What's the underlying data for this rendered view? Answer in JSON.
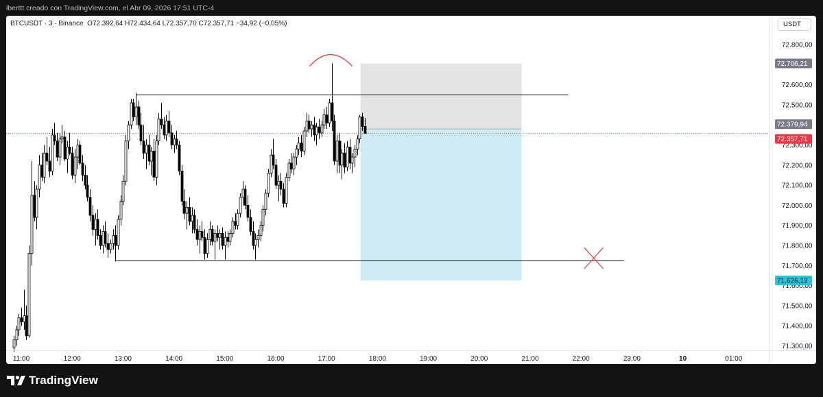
{
  "caption": "lberttt creado con TradingView.com, el Abr 09, 2026 17:51 UTC-4",
  "symbol": {
    "name": "BTCUSDT · 3 · Binance",
    "open": "O72.392,64",
    "high": "H72.434,64",
    "low": "L72.357,70",
    "close": "C72.357,71",
    "change": "−34,92 (−0,05%)"
  },
  "currency": "USDT",
  "brand": "TradingView",
  "colors": {
    "background": "#ffffff",
    "frame": "#131313",
    "candle_up": "#ffffff",
    "candle_down": "#000000",
    "profit_zone": "#cdebf2",
    "stop_zone": "#e4e4e4",
    "last_price_label": "#f23645",
    "target_label": "#26c6da",
    "stop_label": "#787b86",
    "annotation": "#e83a3a"
  },
  "chart_data": {
    "type": "candlestick",
    "symbol": "BTCUSDT",
    "interval": "3",
    "exchange": "Binance",
    "ylim": [
      71260,
      72890
    ],
    "xlim": [
      "11:00",
      "01:00"
    ],
    "y_ticks": [
      {
        "value": 72800,
        "label": "72.800,00"
      },
      {
        "value": 72600,
        "label": "72.600,00"
      },
      {
        "value": 72500,
        "label": "72.500,00"
      },
      {
        "value": 72300,
        "label": "72.300,00"
      },
      {
        "value": 72200,
        "label": "72.200,00"
      },
      {
        "value": 72100,
        "label": "72.100,00"
      },
      {
        "value": 72000,
        "label": "72.000,00"
      },
      {
        "value": 71900,
        "label": "71.900,00"
      },
      {
        "value": 71800,
        "label": "71.800,00"
      },
      {
        "value": 71700,
        "label": "71.700,00"
      },
      {
        "value": 71600,
        "label": "71.600,00"
      },
      {
        "value": 71500,
        "label": "71.500,00"
      },
      {
        "value": 71400,
        "label": "71.400,00"
      },
      {
        "value": 71300,
        "label": "71.300,00"
      }
    ],
    "x_ticks": [
      "11:00",
      "12:00",
      "13:00",
      "14:00",
      "15:00",
      "16:00",
      "17:00",
      "18:00",
      "19:00",
      "20:00",
      "21:00",
      "22:00",
      "23:00",
      "10",
      "01:00"
    ],
    "price_labels": [
      {
        "value": 72706.21,
        "label": "72.706,21",
        "role": "stop"
      },
      {
        "value": 72379.94,
        "label": "72.379,94",
        "role": "entry"
      },
      {
        "value": 72357.71,
        "label": "72.357,71",
        "role": "last"
      },
      {
        "value": 71626.13,
        "label": "71.626,13",
        "role": "target"
      }
    ],
    "position_tool": {
      "type": "short",
      "entry": 72379.94,
      "stop": 72706.21,
      "target": 71626.13,
      "start_time": "17:40",
      "end_time": "20:50"
    },
    "horizontal_lines": [
      {
        "price": 72550,
        "from": "13:15",
        "to": "21:45"
      },
      {
        "price": 71725,
        "from": "12:51",
        "to": "22:51"
      }
    ],
    "candles": [
      {
        "t": "10:51",
        "o": 71290,
        "h": 71350,
        "l": 71270,
        "c": 71330
      },
      {
        "t": "10:54",
        "o": 71330,
        "h": 71400,
        "l": 71300,
        "c": 71380
      },
      {
        "t": "10:57",
        "o": 71380,
        "h": 71460,
        "l": 71350,
        "c": 71440
      },
      {
        "t": "11:00",
        "o": 71440,
        "h": 71490,
        "l": 71400,
        "c": 71420
      },
      {
        "t": "11:03",
        "o": 71420,
        "h": 71580,
        "l": 71380,
        "c": 71450
      },
      {
        "t": "11:06",
        "o": 71450,
        "h": 71500,
        "l": 71330,
        "c": 71350
      },
      {
        "t": "11:09",
        "o": 71350,
        "h": 71800,
        "l": 71340,
        "c": 71760
      },
      {
        "t": "11:12",
        "o": 71760,
        "h": 72220,
        "l": 71700,
        "c": 72050
      },
      {
        "t": "11:15",
        "o": 72050,
        "h": 72120,
        "l": 71920,
        "c": 71940
      },
      {
        "t": "11:18",
        "o": 71940,
        "h": 72100,
        "l": 71880,
        "c": 72080
      },
      {
        "t": "11:21",
        "o": 72080,
        "h": 72250,
        "l": 72040,
        "c": 72200
      },
      {
        "t": "11:24",
        "o": 72200,
        "h": 72260,
        "l": 72120,
        "c": 72140
      },
      {
        "t": "11:27",
        "o": 72140,
        "h": 72300,
        "l": 72110,
        "c": 72260
      },
      {
        "t": "11:30",
        "o": 72260,
        "h": 72340,
        "l": 72200,
        "c": 72220
      },
      {
        "t": "11:33",
        "o": 72220,
        "h": 72290,
        "l": 72140,
        "c": 72170
      },
      {
        "t": "11:36",
        "o": 72170,
        "h": 72380,
        "l": 72150,
        "c": 72350
      },
      {
        "t": "11:39",
        "o": 72350,
        "h": 72410,
        "l": 72300,
        "c": 72320
      },
      {
        "t": "11:42",
        "o": 72320,
        "h": 72360,
        "l": 72220,
        "c": 72240
      },
      {
        "t": "11:45",
        "o": 72240,
        "h": 72360,
        "l": 72200,
        "c": 72330
      },
      {
        "t": "11:48",
        "o": 72330,
        "h": 72400,
        "l": 72310,
        "c": 72340
      },
      {
        "t": "11:51",
        "o": 72340,
        "h": 72370,
        "l": 72220,
        "c": 72230
      },
      {
        "t": "11:54",
        "o": 72230,
        "h": 72320,
        "l": 72160,
        "c": 72290
      },
      {
        "t": "11:57",
        "o": 72290,
        "h": 72360,
        "l": 72250,
        "c": 72260
      },
      {
        "t": "12:00",
        "o": 72260,
        "h": 72290,
        "l": 72130,
        "c": 72150
      },
      {
        "t": "12:03",
        "o": 72150,
        "h": 72280,
        "l": 72110,
        "c": 72240
      },
      {
        "t": "12:06",
        "o": 72240,
        "h": 72330,
        "l": 72180,
        "c": 72300
      },
      {
        "t": "12:09",
        "o": 72300,
        "h": 72320,
        "l": 72200,
        "c": 72210
      },
      {
        "t": "12:12",
        "o": 72210,
        "h": 72250,
        "l": 72120,
        "c": 72150
      },
      {
        "t": "12:15",
        "o": 72150,
        "h": 72200,
        "l": 72080,
        "c": 72100
      },
      {
        "t": "12:18",
        "o": 72100,
        "h": 72150,
        "l": 72020,
        "c": 72040
      },
      {
        "t": "12:21",
        "o": 72040,
        "h": 72080,
        "l": 71920,
        "c": 71950
      },
      {
        "t": "12:24",
        "o": 71950,
        "h": 72000,
        "l": 71850,
        "c": 71880
      },
      {
        "t": "12:27",
        "o": 71880,
        "h": 71960,
        "l": 71800,
        "c": 71930
      },
      {
        "t": "12:30",
        "o": 71930,
        "h": 71980,
        "l": 71830,
        "c": 71850
      },
      {
        "t": "12:33",
        "o": 71850,
        "h": 71880,
        "l": 71780,
        "c": 71800
      },
      {
        "t": "12:36",
        "o": 71800,
        "h": 71900,
        "l": 71760,
        "c": 71870
      },
      {
        "t": "12:39",
        "o": 71870,
        "h": 71920,
        "l": 71790,
        "c": 71810
      },
      {
        "t": "12:42",
        "o": 71810,
        "h": 71860,
        "l": 71740,
        "c": 71780
      },
      {
        "t": "12:45",
        "o": 71780,
        "h": 71830,
        "l": 71760,
        "c": 71810
      },
      {
        "t": "12:48",
        "o": 71810,
        "h": 71880,
        "l": 71780,
        "c": 71850
      },
      {
        "t": "12:51",
        "o": 71850,
        "h": 71900,
        "l": 71720,
        "c": 71800
      },
      {
        "t": "12:54",
        "o": 71800,
        "h": 71950,
        "l": 71780,
        "c": 71930
      },
      {
        "t": "12:57",
        "o": 71930,
        "h": 72050,
        "l": 71900,
        "c": 72020
      },
      {
        "t": "13:00",
        "o": 72020,
        "h": 72150,
        "l": 72000,
        "c": 72120
      },
      {
        "t": "13:03",
        "o": 72120,
        "h": 72350,
        "l": 72100,
        "c": 72320
      },
      {
        "t": "13:06",
        "o": 72320,
        "h": 72420,
        "l": 72280,
        "c": 72400
      },
      {
        "t": "13:09",
        "o": 72400,
        "h": 72530,
        "l": 72380,
        "c": 72510
      },
      {
        "t": "13:12",
        "o": 72510,
        "h": 72530,
        "l": 72420,
        "c": 72440
      },
      {
        "t": "13:15",
        "o": 72440,
        "h": 72560,
        "l": 72400,
        "c": 72490
      },
      {
        "t": "13:18",
        "o": 72490,
        "h": 72520,
        "l": 72380,
        "c": 72400
      },
      {
        "t": "13:21",
        "o": 72400,
        "h": 72460,
        "l": 72300,
        "c": 72320
      },
      {
        "t": "13:24",
        "o": 72320,
        "h": 72400,
        "l": 72230,
        "c": 72260
      },
      {
        "t": "13:27",
        "o": 72260,
        "h": 72330,
        "l": 72180,
        "c": 72300
      },
      {
        "t": "13:30",
        "o": 72300,
        "h": 72350,
        "l": 72200,
        "c": 72220
      },
      {
        "t": "13:33",
        "o": 72220,
        "h": 72290,
        "l": 72150,
        "c": 72270
      },
      {
        "t": "13:36",
        "o": 72270,
        "h": 72330,
        "l": 72120,
        "c": 72140
      },
      {
        "t": "13:39",
        "o": 72140,
        "h": 72350,
        "l": 72100,
        "c": 72320
      },
      {
        "t": "13:42",
        "o": 72320,
        "h": 72460,
        "l": 72300,
        "c": 72430
      },
      {
        "t": "13:45",
        "o": 72430,
        "h": 72510,
        "l": 72380,
        "c": 72400
      },
      {
        "t": "13:48",
        "o": 72400,
        "h": 72440,
        "l": 72330,
        "c": 72350
      },
      {
        "t": "13:51",
        "o": 72350,
        "h": 72450,
        "l": 72320,
        "c": 72420
      },
      {
        "t": "13:54",
        "o": 72420,
        "h": 72470,
        "l": 72340,
        "c": 72360
      },
      {
        "t": "13:57",
        "o": 72360,
        "h": 72400,
        "l": 72280,
        "c": 72300
      },
      {
        "t": "14:00",
        "o": 72300,
        "h": 72350,
        "l": 72260,
        "c": 72330
      },
      {
        "t": "14:03",
        "o": 72330,
        "h": 72370,
        "l": 72280,
        "c": 72300
      },
      {
        "t": "14:06",
        "o": 72300,
        "h": 72320,
        "l": 72150,
        "c": 72170
      },
      {
        "t": "14:09",
        "o": 72170,
        "h": 72200,
        "l": 72000,
        "c": 72020
      },
      {
        "t": "14:12",
        "o": 72020,
        "h": 72080,
        "l": 71930,
        "c": 71960
      },
      {
        "t": "14:15",
        "o": 71960,
        "h": 72020,
        "l": 71880,
        "c": 71990
      },
      {
        "t": "14:18",
        "o": 71990,
        "h": 72040,
        "l": 71900,
        "c": 71920
      },
      {
        "t": "14:21",
        "o": 71920,
        "h": 71990,
        "l": 71860,
        "c": 71950
      },
      {
        "t": "14:24",
        "o": 71950,
        "h": 71980,
        "l": 71860,
        "c": 71880
      },
      {
        "t": "14:27",
        "o": 71880,
        "h": 71930,
        "l": 71800,
        "c": 71830
      },
      {
        "t": "14:30",
        "o": 71830,
        "h": 71900,
        "l": 71760,
        "c": 71870
      },
      {
        "t": "14:33",
        "o": 71870,
        "h": 71920,
        "l": 71820,
        "c": 71840
      },
      {
        "t": "14:36",
        "o": 71840,
        "h": 71880,
        "l": 71730,
        "c": 71760
      },
      {
        "t": "14:39",
        "o": 71760,
        "h": 71860,
        "l": 71740,
        "c": 71830
      },
      {
        "t": "14:42",
        "o": 71830,
        "h": 71920,
        "l": 71800,
        "c": 71880
      },
      {
        "t": "14:45",
        "o": 71880,
        "h": 71900,
        "l": 71800,
        "c": 71820
      },
      {
        "t": "14:48",
        "o": 71820,
        "h": 71880,
        "l": 71730,
        "c": 71860
      },
      {
        "t": "14:51",
        "o": 71860,
        "h": 71900,
        "l": 71820,
        "c": 71840
      },
      {
        "t": "14:54",
        "o": 71840,
        "h": 71880,
        "l": 71780,
        "c": 71860
      },
      {
        "t": "14:57",
        "o": 71860,
        "h": 71890,
        "l": 71780,
        "c": 71800
      },
      {
        "t": "15:00",
        "o": 71800,
        "h": 71870,
        "l": 71730,
        "c": 71840
      },
      {
        "t": "15:03",
        "o": 71840,
        "h": 71870,
        "l": 71790,
        "c": 71820
      },
      {
        "t": "15:06",
        "o": 71820,
        "h": 71880,
        "l": 71800,
        "c": 71860
      },
      {
        "t": "15:09",
        "o": 71860,
        "h": 71940,
        "l": 71840,
        "c": 71920
      },
      {
        "t": "15:12",
        "o": 71920,
        "h": 71960,
        "l": 71880,
        "c": 71900
      },
      {
        "t": "15:15",
        "o": 71900,
        "h": 71980,
        "l": 71880,
        "c": 71960
      },
      {
        "t": "15:18",
        "o": 71960,
        "h": 72060,
        "l": 71940,
        "c": 72040
      },
      {
        "t": "15:21",
        "o": 72040,
        "h": 72120,
        "l": 72000,
        "c": 72080
      },
      {
        "t": "15:24",
        "o": 72080,
        "h": 72100,
        "l": 71980,
        "c": 72000
      },
      {
        "t": "15:27",
        "o": 72000,
        "h": 72050,
        "l": 71920,
        "c": 71940
      },
      {
        "t": "15:30",
        "o": 71940,
        "h": 71980,
        "l": 71850,
        "c": 71870
      },
      {
        "t": "15:33",
        "o": 71870,
        "h": 71920,
        "l": 71780,
        "c": 71800
      },
      {
        "t": "15:36",
        "o": 71800,
        "h": 71860,
        "l": 71730,
        "c": 71830
      },
      {
        "t": "15:39",
        "o": 71830,
        "h": 71880,
        "l": 71790,
        "c": 71850
      },
      {
        "t": "15:42",
        "o": 71850,
        "h": 71920,
        "l": 71820,
        "c": 71900
      },
      {
        "t": "15:45",
        "o": 71900,
        "h": 72000,
        "l": 71870,
        "c": 71980
      },
      {
        "t": "15:48",
        "o": 71980,
        "h": 72080,
        "l": 71950,
        "c": 72060
      },
      {
        "t": "15:51",
        "o": 72060,
        "h": 72180,
        "l": 72040,
        "c": 72160
      },
      {
        "t": "15:54",
        "o": 72160,
        "h": 72280,
        "l": 72140,
        "c": 72250
      },
      {
        "t": "15:57",
        "o": 72250,
        "h": 72330,
        "l": 72180,
        "c": 72200
      },
      {
        "t": "16:00",
        "o": 72200,
        "h": 72230,
        "l": 72080,
        "c": 72100
      },
      {
        "t": "16:03",
        "o": 72100,
        "h": 72150,
        "l": 72020,
        "c": 72120
      },
      {
        "t": "16:06",
        "o": 72120,
        "h": 72160,
        "l": 72050,
        "c": 72080
      },
      {
        "t": "16:09",
        "o": 72080,
        "h": 72110,
        "l": 71990,
        "c": 72010
      },
      {
        "t": "16:12",
        "o": 72010,
        "h": 72160,
        "l": 71990,
        "c": 72140
      },
      {
        "t": "16:15",
        "o": 72140,
        "h": 72230,
        "l": 72120,
        "c": 72210
      },
      {
        "t": "16:18",
        "o": 72210,
        "h": 72260,
        "l": 72160,
        "c": 72180
      },
      {
        "t": "16:21",
        "o": 72180,
        "h": 72260,
        "l": 72150,
        "c": 72240
      },
      {
        "t": "16:24",
        "o": 72240,
        "h": 72300,
        "l": 72200,
        "c": 72280
      },
      {
        "t": "16:27",
        "o": 72280,
        "h": 72340,
        "l": 72250,
        "c": 72310
      },
      {
        "t": "16:30",
        "o": 72310,
        "h": 72350,
        "l": 72240,
        "c": 72270
      },
      {
        "t": "16:33",
        "o": 72270,
        "h": 72390,
        "l": 72250,
        "c": 72370
      },
      {
        "t": "16:36",
        "o": 72370,
        "h": 72460,
        "l": 72340,
        "c": 72420
      },
      {
        "t": "16:39",
        "o": 72420,
        "h": 72450,
        "l": 72360,
        "c": 72380
      },
      {
        "t": "16:42",
        "o": 72380,
        "h": 72420,
        "l": 72340,
        "c": 72400
      },
      {
        "t": "16:45",
        "o": 72400,
        "h": 72440,
        "l": 72320,
        "c": 72350
      },
      {
        "t": "16:48",
        "o": 72350,
        "h": 72410,
        "l": 72300,
        "c": 72390
      },
      {
        "t": "16:51",
        "o": 72390,
        "h": 72430,
        "l": 72330,
        "c": 72360
      },
      {
        "t": "16:54",
        "o": 72360,
        "h": 72420,
        "l": 72340,
        "c": 72400
      },
      {
        "t": "16:57",
        "o": 72400,
        "h": 72480,
        "l": 72380,
        "c": 72450
      },
      {
        "t": "17:00",
        "o": 72450,
        "h": 72490,
        "l": 72380,
        "c": 72410
      },
      {
        "t": "17:03",
        "o": 72410,
        "h": 72530,
        "l": 72390,
        "c": 72510
      },
      {
        "t": "17:06",
        "o": 72510,
        "h": 72706,
        "l": 72370,
        "c": 72420
      },
      {
        "t": "17:09",
        "o": 72420,
        "h": 72450,
        "l": 72200,
        "c": 72220
      },
      {
        "t": "17:12",
        "o": 72220,
        "h": 72350,
        "l": 72160,
        "c": 72320
      },
      {
        "t": "17:15",
        "o": 72320,
        "h": 72360,
        "l": 72160,
        "c": 72200
      },
      {
        "t": "17:18",
        "o": 72200,
        "h": 72280,
        "l": 72130,
        "c": 72260
      },
      {
        "t": "17:21",
        "o": 72260,
        "h": 72310,
        "l": 72160,
        "c": 72190
      },
      {
        "t": "17:24",
        "o": 72190,
        "h": 72320,
        "l": 72170,
        "c": 72290
      },
      {
        "t": "17:27",
        "o": 72290,
        "h": 72330,
        "l": 72180,
        "c": 72210
      },
      {
        "t": "17:30",
        "o": 72210,
        "h": 72260,
        "l": 72160,
        "c": 72240
      },
      {
        "t": "17:33",
        "o": 72240,
        "h": 72300,
        "l": 72190,
        "c": 72280
      },
      {
        "t": "17:36",
        "o": 72280,
        "h": 72350,
        "l": 72250,
        "c": 72330
      },
      {
        "t": "17:39",
        "o": 72330,
        "h": 72450,
        "l": 72310,
        "c": 72440
      },
      {
        "t": "17:42",
        "o": 72440,
        "h": 72460,
        "l": 72370,
        "c": 72392.64
      },
      {
        "t": "17:45",
        "o": 72392.64,
        "h": 72434.64,
        "l": 72357.7,
        "c": 72357.71
      }
    ]
  }
}
